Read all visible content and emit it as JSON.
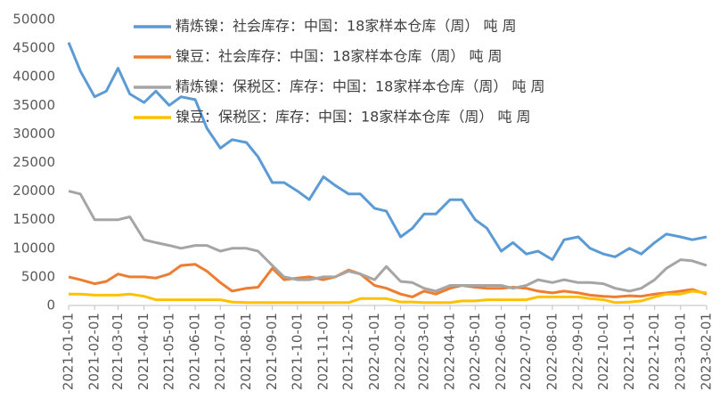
{
  "chart_data": {
    "type": "line",
    "x": [
      "2021-01-01",
      "2021-01-15",
      "2021-02-01",
      "2021-02-15",
      "2021-03-01",
      "2021-03-15",
      "2021-04-01",
      "2021-04-15",
      "2021-05-01",
      "2021-05-15",
      "2021-06-01",
      "2021-06-15",
      "2021-07-01",
      "2021-07-15",
      "2021-08-01",
      "2021-08-15",
      "2021-09-01",
      "2021-09-15",
      "2021-10-01",
      "2021-10-15",
      "2021-11-01",
      "2021-11-15",
      "2021-12-01",
      "2021-12-15",
      "2022-01-01",
      "2022-01-15",
      "2022-02-01",
      "2022-02-15",
      "2022-03-01",
      "2022-03-15",
      "2022-04-01",
      "2022-04-15",
      "2022-05-01",
      "2022-05-15",
      "2022-06-01",
      "2022-06-15",
      "2022-07-01",
      "2022-07-15",
      "2022-08-01",
      "2022-08-15",
      "2022-09-01",
      "2022-09-15",
      "2022-10-01",
      "2022-10-15",
      "2022-11-01",
      "2022-11-15",
      "2022-12-01",
      "2022-12-15",
      "2023-01-01",
      "2023-01-15",
      "2023-02-01"
    ],
    "series": [
      {
        "name": "精炼镍：社会库存：中国：18家样本仓库（周） 吨 周",
        "color": "#5b9bd5",
        "values": [
          46000,
          41000,
          36500,
          37500,
          41500,
          37000,
          35500,
          37500,
          35000,
          36500,
          36000,
          31000,
          27500,
          29000,
          28500,
          26000,
          21500,
          21500,
          20000,
          18500,
          22500,
          21000,
          19500,
          19500,
          17000,
          16500,
          12000,
          13500,
          16000,
          16000,
          18500,
          18500,
          15000,
          13500,
          9500,
          11000,
          9000,
          9500,
          8000,
          11500,
          12000,
          10000,
          9000,
          8500,
          10000,
          9000,
          11000,
          12500,
          12000,
          11500,
          12000
        ]
      },
      {
        "name": "镍豆：社会库存：中国：18家样本仓库（周） 吨 周",
        "color": "#ed7d31",
        "values": [
          5000,
          4500,
          3800,
          4200,
          5500,
          5000,
          5000,
          4800,
          5500,
          7000,
          7200,
          6000,
          4000,
          2500,
          3000,
          3200,
          6500,
          4500,
          4800,
          5000,
          4500,
          5000,
          6200,
          5500,
          3500,
          3000,
          2000,
          1500,
          2500,
          2000,
          3000,
          3500,
          3200,
          3000,
          3000,
          3200,
          3000,
          2500,
          2200,
          2500,
          2200,
          1800,
          1600,
          1500,
          1700,
          1600,
          2000,
          2200,
          2500,
          2800,
          2000
        ]
      },
      {
        "name": "精炼镍：保税区：库存：中国：18家样本仓库（周） 吨 周",
        "color": "#a5a5a5",
        "values": [
          20000,
          19500,
          15000,
          15000,
          15000,
          15500,
          11500,
          11000,
          10500,
          10000,
          10500,
          10500,
          9500,
          10000,
          10000,
          9500,
          7000,
          5000,
          4500,
          4500,
          5000,
          5000,
          6000,
          5500,
          4500,
          6800,
          4200,
          4000,
          3000,
          2500,
          3500,
          3500,
          3500,
          3500,
          3500,
          3000,
          3500,
          4500,
          4000,
          4500,
          4000,
          4000,
          3800,
          3000,
          2500,
          3000,
          4500,
          6500,
          8000,
          7800,
          7000
        ]
      },
      {
        "name": "镍豆：保税区：库存：中国：18家样本仓库（周） 吨 周",
        "color": "#ffc000",
        "values": [
          2000,
          2000,
          1800,
          1800,
          1800,
          2000,
          1600,
          1000,
          1000,
          1000,
          1000,
          1000,
          1000,
          600,
          500,
          500,
          500,
          500,
          500,
          500,
          500,
          500,
          500,
          1200,
          1200,
          1200,
          600,
          600,
          500,
          500,
          500,
          800,
          800,
          1000,
          1000,
          1000,
          1000,
          1500,
          1500,
          1500,
          1500,
          1200,
          1000,
          500,
          600,
          800,
          1500,
          2000,
          2000,
          2500,
          2200
        ]
      }
    ],
    "xlim": [
      "2021-01-01",
      "2023-02-01"
    ],
    "xticks": [
      "2021-01-01",
      "2021-02-01",
      "2021-03-01",
      "2021-04-01",
      "2021-05-01",
      "2021-06-01",
      "2021-07-01",
      "2021-08-01",
      "2021-09-01",
      "2021-10-01",
      "2021-11-01",
      "2021-12-01",
      "2022-01-01",
      "2022-02-01",
      "2022-03-01",
      "2022-04-01",
      "2022-05-01",
      "2022-06-01",
      "2022-07-01",
      "2022-08-01",
      "2022-09-01",
      "2022-10-01",
      "2022-11-01",
      "2022-12-01",
      "2023-01-01",
      "2023-02-01"
    ],
    "ylim": [
      0,
      50000
    ],
    "yticks": [
      0,
      5000,
      10000,
      15000,
      20000,
      25000,
      30000,
      35000,
      40000,
      45000,
      50000
    ],
    "grid": false
  }
}
